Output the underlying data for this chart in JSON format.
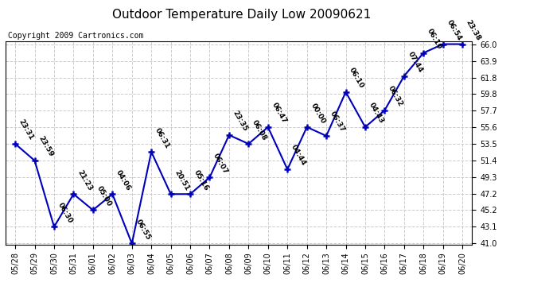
{
  "title": "Outdoor Temperature Daily Low 20090621",
  "copyright": "Copyright 2009 Cartronics.com",
  "dates": [
    "05/28",
    "05/29",
    "05/30",
    "05/31",
    "06/01",
    "06/02",
    "06/03",
    "06/04",
    "06/05",
    "06/06",
    "06/07",
    "06/08",
    "06/09",
    "06/10",
    "06/11",
    "06/12",
    "06/13",
    "06/14",
    "06/15",
    "06/16",
    "06/17",
    "06/18",
    "06/19",
    "06/20"
  ],
  "temps": [
    53.5,
    51.4,
    43.1,
    47.2,
    45.2,
    47.2,
    41.0,
    52.5,
    47.2,
    47.2,
    49.3,
    54.6,
    53.5,
    55.6,
    50.3,
    55.6,
    54.5,
    60.0,
    55.6,
    57.7,
    62.0,
    64.9,
    66.0,
    66.0
  ],
  "annotations": [
    "23:31",
    "23:59",
    "06:30",
    "21:23",
    "05:00",
    "04:06",
    "06:55",
    "06:31",
    "20:51",
    "05:16",
    "06:07",
    "23:35",
    "06:08",
    "06:47",
    "04:44",
    "00:00",
    "06:37",
    "06:10",
    "04:43",
    "06:32",
    "07:44",
    "06:10",
    "06:54",
    "23:38"
  ],
  "ylim_min": 41.0,
  "ylim_max": 66.0,
  "yticks": [
    41.0,
    43.1,
    45.2,
    47.2,
    49.3,
    51.4,
    53.5,
    55.6,
    57.7,
    59.8,
    61.8,
    63.9,
    66.0
  ],
  "line_color": "#0000bb",
  "bg_color": "#ffffff",
  "grid_color": "#cccccc",
  "title_fontsize": 11,
  "annotation_fontsize": 6.5,
  "copyright_fontsize": 7,
  "tick_fontsize": 7
}
